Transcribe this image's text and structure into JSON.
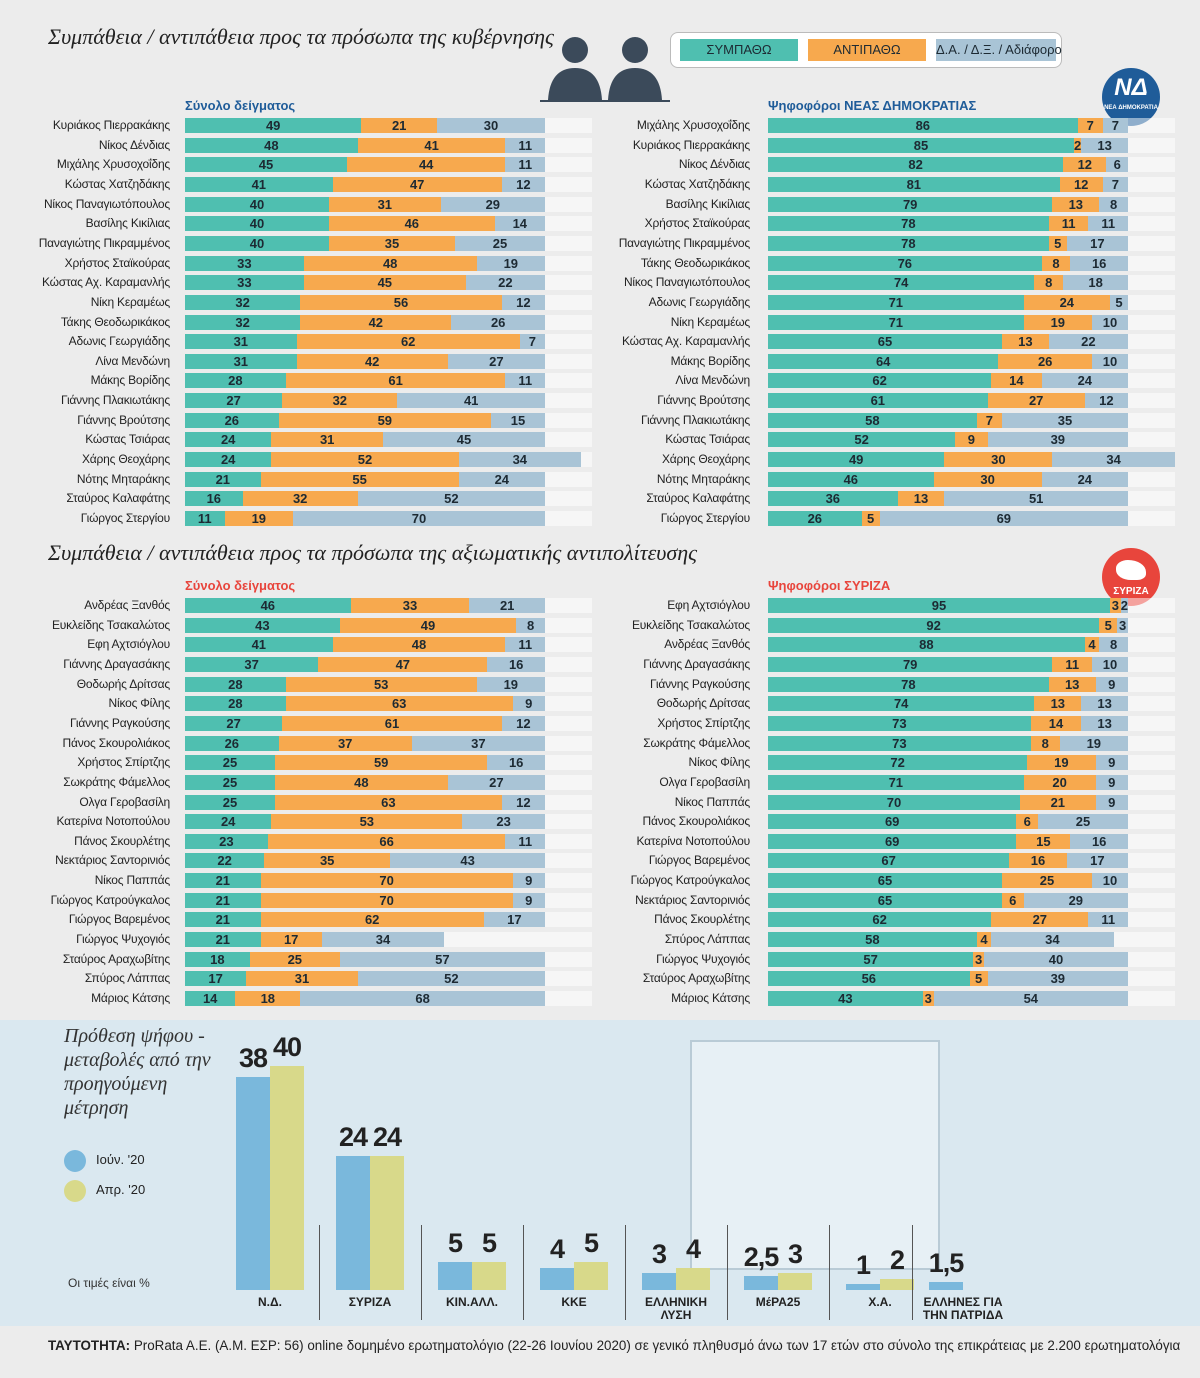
{
  "section_titles": [
    "Συμπάθεια / αντιπάθεια προς τα πρόσωπα της κυβέρνησης",
    "Συμπάθεια / αντιπάθεια προς τα πρόσωπα της αξιωματικής αντιπολίτευσης"
  ],
  "legend": [
    {
      "name": "ΣΥΜΠΑΘΩ",
      "color": "#4fbfb0"
    },
    {
      "name": "ΑΝΤΙΠΑΘΩ",
      "color": "#f7a94e"
    },
    {
      "name": "Δ.Α. / Δ.Ξ. / Αδιάφορο",
      "color": "#a9c4d6"
    }
  ],
  "logos": [
    "ΝΕΑ ΔΗΜΟΚΡΑΤΙΑ",
    "ΣΥΡΙΖΑ"
  ],
  "footer": {
    "label": "ΤΑΥΤΟΤΗΤΑ:",
    "text": "ProRata A.E. (Α.Μ. ΕΣΡ: 56) online δομημένο ερωτηματολόγιο (22-26 Ιουνίου 2020) σε γενικό πληθυσμό άνω των 17 ετών στο σύνολο της επικράτειας με 2.200 ερωτηματολόγια"
  },
  "chart_data": [
    {
      "type": "stacked-bar",
      "title": "Σύνολο δείγματος",
      "title_color": "#1f5c99",
      "categories": [
        "Κυριάκος Πιερρακάκης",
        "Νίκος Δένδιας",
        "Μιχάλης Χρυσοχοΐδης",
        "Κώστας Χατζηδάκης",
        "Νίκος Παναγιωτόπουλος",
        "Βασίλης Κικίλιας",
        "Παναγιώτης Πικραμμένος",
        "Χρήστος Σταϊκούρας",
        "Κώστας Αχ. Καραμανλής",
        "Νίκη Κεραμέως",
        "Τάκης Θεοδωρικάκος",
        "Αδωνις Γεωργιάδης",
        "Λίνα Μενδώνη",
        "Μάκης Βορίδης",
        "Γιάννης Πλακιωτάκης",
        "Γιάννης Βρούτσης",
        "Κώστας Τσιάρας",
        "Χάρης Θεοχάρης",
        "Νότης Μηταράκης",
        "Σταύρος Καλαφάτης",
        "Γιώργος Στεργίου"
      ],
      "series": [
        {
          "color": "#4fbfb0",
          "values": [
            49,
            48,
            45,
            41,
            40,
            40,
            40,
            33,
            33,
            32,
            32,
            31,
            31,
            28,
            27,
            26,
            24,
            24,
            21,
            16,
            11
          ]
        },
        {
          "color": "#f7a94e",
          "values": [
            21,
            41,
            44,
            47,
            31,
            46,
            35,
            48,
            45,
            56,
            42,
            62,
            42,
            61,
            32,
            59,
            31,
            52,
            55,
            32,
            19
          ]
        },
        {
          "color": "#a9c4d6",
          "values": [
            30,
            11,
            11,
            12,
            29,
            14,
            25,
            19,
            22,
            12,
            26,
            7,
            27,
            11,
            41,
            15,
            45,
            34,
            24,
            52,
            70
          ]
        }
      ]
    },
    {
      "type": "stacked-bar",
      "title": "Ψηφοφόροι ΝΕΑΣ ΔΗΜΟΚΡΑΤΙΑΣ",
      "title_color": "#1f5c99",
      "categories": [
        "Μιχάλης Χρυσοχοΐδης",
        "Κυριάκος Πιερρακάκης",
        "Νίκος Δένδιας",
        "Κώστας Χατζηδάκης",
        "Βασίλης Κικίλιας",
        "Χρήστος Σταϊκούρας",
        "Παναγιώτης Πικραμμένος",
        "Τάκης Θεοδωρικάκος",
        "Νίκος Παναγιωτόπουλος",
        "Αδωνις Γεωργιάδης",
        "Νίκη Κεραμέως",
        "Κώστας Αχ. Καραμανλής",
        "Μάκης Βορίδης",
        "Λίνα Μενδώνη",
        "Γιάννης Βρούτσης",
        "Γιάννης Πλακιωτάκης",
        "Κώστας Τσιάρας",
        "Χάρης Θεοχάρης",
        "Νότης Μηταράκης",
        "Σταύρος Καλαφάτης",
        "Γιώργος Στεργίου"
      ],
      "series": [
        {
          "color": "#4fbfb0",
          "values": [
            86,
            85,
            82,
            81,
            79,
            78,
            78,
            76,
            74,
            71,
            71,
            65,
            64,
            62,
            61,
            58,
            52,
            49,
            46,
            36,
            26
          ]
        },
        {
          "color": "#f7a94e",
          "values": [
            7,
            2,
            12,
            12,
            13,
            11,
            5,
            8,
            8,
            24,
            19,
            13,
            26,
            14,
            27,
            7,
            9,
            30,
            30,
            13,
            5
          ]
        },
        {
          "color": "#a9c4d6",
          "values": [
            7,
            13,
            6,
            7,
            8,
            11,
            17,
            16,
            18,
            5,
            10,
            22,
            10,
            24,
            12,
            35,
            39,
            34,
            24,
            51,
            69
          ]
        }
      ]
    },
    {
      "type": "stacked-bar",
      "title": "Σύνολο δείγματος",
      "title_color": "#e8453c",
      "categories": [
        "Ανδρέας Ξανθός",
        "Ευκλείδης Τσακαλώτος",
        "Εφη Αχτσιόγλου",
        "Γιάννης Δραγασάκης",
        "Θοδωρής Δρίτσας",
        "Νίκος Φίλης",
        "Γιάννης Ραγκούσης",
        "Πάνος Σκουρολιάκος",
        "Χρήστος Σπίρτζης",
        "Σωκράτης Φάμελλος",
        "Ολγα Γεροβασίλη",
        "Κατερίνα Νοτοπούλου",
        "Πάνος Σκουρλέτης",
        "Νεκτάριος Σαντορινιός",
        "Νίκος Παππάς",
        "Γιώργος Κατρούγκαλος",
        "Γιώργος Βαρεμένος",
        "Γιώργος Ψυχογιός",
        "Σταύρος Αραχωβίτης",
        "Σπύρος Λάππας",
        "Μάριος Κάτσης"
      ],
      "series": [
        {
          "color": "#4fbfb0",
          "values": [
            46,
            43,
            41,
            37,
            28,
            28,
            27,
            26,
            25,
            25,
            25,
            24,
            23,
            22,
            21,
            21,
            21,
            21,
            18,
            17,
            14
          ]
        },
        {
          "color": "#f7a94e",
          "values": [
            33,
            49,
            48,
            47,
            53,
            63,
            61,
            37,
            59,
            48,
            63,
            53,
            66,
            35,
            70,
            70,
            62,
            17,
            25,
            31,
            18
          ]
        },
        {
          "color": "#a9c4d6",
          "values": [
            21,
            8,
            11,
            16,
            19,
            9,
            12,
            37,
            16,
            27,
            12,
            23,
            11,
            43,
            9,
            9,
            17,
            34,
            57,
            52,
            68
          ]
        }
      ]
    },
    {
      "type": "stacked-bar",
      "title": "Ψηφοφόροι ΣΥΡΙΖΑ",
      "title_color": "#e8453c",
      "categories": [
        "Εφη Αχτσιόγλου",
        "Ευκλείδης Τσακαλώτος",
        "Ανδρέας Ξανθός",
        "Γιάννης Δραγασάκης",
        "Γιάννης Ραγκούσης",
        "Θοδωρής Δρίτσας",
        "Χρήστος Σπίρτζης",
        "Σωκράτης Φάμελλος",
        "Νίκος Φίλης",
        "Ολγα Γεροβασίλη",
        "Νίκος Παππάς",
        "Πάνος Σκουρολιάκος",
        "Κατερίνα Νοτοπούλου",
        "Γιώργος Βαρεμένος",
        "Γιώργος Κατρούγκαλος",
        "Νεκτάριος Σαντορινιός",
        "Πάνος Σκουρλέτης",
        "Σπύρος Λάππας",
        "Γιώργος Ψυχογιός",
        "Σταύρος Αραχωβίτης",
        "Μάριος Κάτσης"
      ],
      "series": [
        {
          "color": "#4fbfb0",
          "values": [
            95,
            92,
            88,
            79,
            78,
            74,
            73,
            73,
            72,
            71,
            70,
            69,
            69,
            67,
            65,
            65,
            62,
            58,
            57,
            56,
            43
          ]
        },
        {
          "color": "#f7a94e",
          "values": [
            3,
            5,
            4,
            11,
            13,
            13,
            14,
            8,
            19,
            20,
            21,
            6,
            15,
            16,
            25,
            6,
            27,
            4,
            3,
            5,
            3
          ]
        },
        {
          "color": "#a9c4d6",
          "values": [
            2,
            3,
            8,
            10,
            9,
            13,
            13,
            19,
            9,
            9,
            9,
            25,
            16,
            17,
            10,
            29,
            11,
            34,
            40,
            39,
            54
          ]
        }
      ]
    },
    {
      "type": "bar",
      "title": "Πρόθεση ψήφου - μεταβολές από την προηγούμενη μέτρηση",
      "note": "Οι τιμές είναι %",
      "categories": [
        "Ν.Δ.",
        "ΣΥΡΙΖΑ",
        "ΚΙΝ.ΑΛΛ.",
        "ΚΚΕ",
        "ΕΛΛΗΝΙΚΗ ΛΥΣΗ",
        "ΜέΡΑ25",
        "Χ.Α.",
        "ΕΛΛΗΝΕΣ ΓΙΑ ΤΗΝ ΠΑΤΡΙΔΑ"
      ],
      "series": [
        {
          "name": "Ιούν. '20",
          "color": "#7ab8dc",
          "values": [
            38,
            24,
            5,
            4,
            3,
            2.5,
            1,
            1.5
          ],
          "value_labels": [
            "38",
            "24",
            "5",
            "4",
            "3",
            "2,5",
            "1",
            "1,5"
          ]
        },
        {
          "name": "Απρ. '20",
          "color": "#d8d98a",
          "values": [
            40,
            24,
            5,
            5,
            4,
            3,
            2,
            null
          ]
        }
      ]
    }
  ]
}
